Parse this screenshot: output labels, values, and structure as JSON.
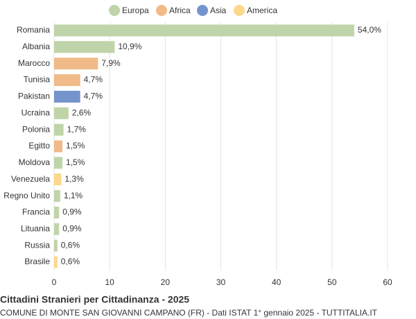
{
  "chart_data": {
    "type": "hbar",
    "title": "Cittadini Stranieri per Cittadinanza - 2025",
    "subtitle": "COMUNE DI MONTE SAN GIOVANNI CAMPANO (FR) - Dati ISTAT 1° gennaio 2025 - TUTTITALIA.IT",
    "categories": [
      "Romania",
      "Albania",
      "Marocco",
      "Tunisia",
      "Pakistan",
      "Ucraina",
      "Polonia",
      "Egitto",
      "Moldova",
      "Venezuela",
      "Regno Unito",
      "Francia",
      "Lituania",
      "Russia",
      "Brasile"
    ],
    "series": [
      {
        "name": "Europa",
        "color": "#c0d4a9",
        "values": [
          54.0,
          10.9,
          null,
          null,
          null,
          2.6,
          1.7,
          null,
          1.5,
          null,
          1.1,
          0.9,
          0.9,
          0.6,
          null
        ],
        "value_labels": [
          "54,0%",
          "10,9%",
          null,
          null,
          null,
          "2,6%",
          "1,7%",
          null,
          "1,5%",
          null,
          "1,1%",
          "0,9%",
          "0,9%",
          "0,6%",
          null
        ]
      },
      {
        "name": "Africa",
        "color": "#f0bb88",
        "values": [
          null,
          null,
          7.9,
          4.7,
          null,
          null,
          null,
          1.5,
          null,
          null,
          null,
          null,
          null,
          null,
          null
        ],
        "value_labels": [
          null,
          null,
          "7,9%",
          "4,7%",
          null,
          null,
          null,
          "1,5%",
          null,
          null,
          null,
          null,
          null,
          null,
          null
        ]
      },
      {
        "name": "Asia",
        "color": "#7594cc",
        "values": [
          null,
          null,
          null,
          null,
          4.7,
          null,
          null,
          null,
          null,
          null,
          null,
          null,
          null,
          null,
          null
        ],
        "value_labels": [
          null,
          null,
          null,
          null,
          "4,7%",
          null,
          null,
          null,
          null,
          null,
          null,
          null,
          null,
          null,
          null
        ]
      },
      {
        "name": "America",
        "color": "#fcd88c",
        "values": [
          null,
          null,
          null,
          null,
          null,
          null,
          null,
          null,
          null,
          1.3,
          null,
          null,
          null,
          null,
          0.6
        ],
        "value_labels": [
          null,
          null,
          null,
          null,
          null,
          null,
          null,
          null,
          null,
          "1,3%",
          null,
          null,
          null,
          null,
          "0,6%"
        ]
      }
    ],
    "xlim": [
      0,
      60
    ],
    "xticks": [
      0,
      10,
      20,
      30,
      40,
      50,
      60
    ],
    "grid": true,
    "legend": "top"
  }
}
